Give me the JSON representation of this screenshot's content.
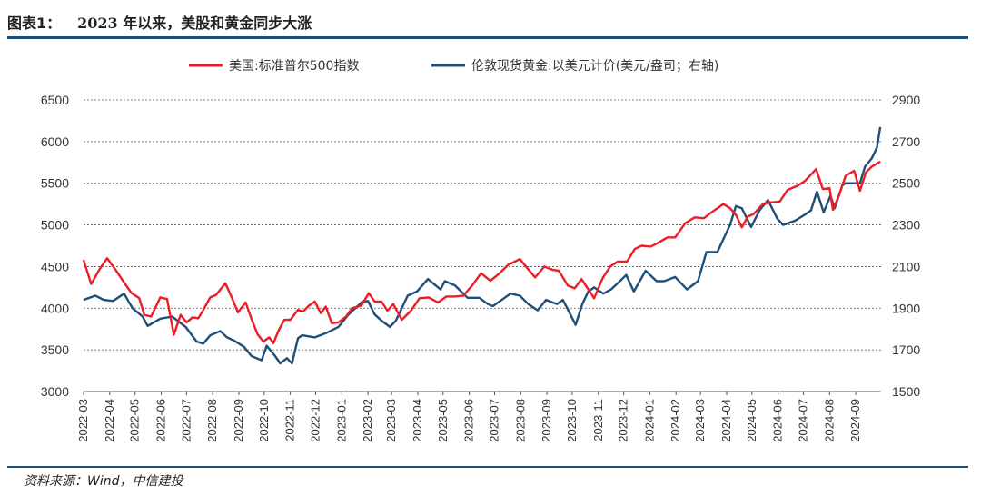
{
  "figure_label": "图表1：",
  "figure_title": "2023 年以来，美股和黄金同步大涨",
  "source": "资料来源：Wind，中信建投",
  "chart_data": {
    "type": "line",
    "legend_position": "top-center",
    "grid": "horizontal-dashed",
    "left_axis": {
      "ylim": [
        3000,
        6500
      ],
      "ticks": [
        3000,
        3500,
        4000,
        4500,
        5000,
        5500,
        6000,
        6500
      ]
    },
    "right_axis": {
      "ylim": [
        1500,
        2900
      ],
      "ticks": [
        1500,
        1700,
        1900,
        2100,
        2300,
        2500,
        2700,
        2900
      ]
    },
    "x_ticks": [
      "2022-03",
      "2022-04",
      "2022-05",
      "2022-06",
      "2022-07",
      "2022-08",
      "2022-09",
      "2022-10",
      "2022-11",
      "2022-12",
      "2023-01",
      "2023-02",
      "2023-03",
      "2023-04",
      "2023-05",
      "2023-06",
      "2023-07",
      "2023-08",
      "2023-09",
      "2023-10",
      "2023-11",
      "2023-12",
      "2024-01",
      "2024-02",
      "2024-03",
      "2024-04",
      "2024-05",
      "2024-06",
      "2024-07",
      "2024-08",
      "2024-09"
    ],
    "series": [
      {
        "name": "美国:标准普尔500指数",
        "axis": "left",
        "color": "#ee1c25",
        "x": [
          "2022-03-01",
          "2022-03-10",
          "2022-03-20",
          "2022-03-29",
          "2022-04-08",
          "2022-04-18",
          "2022-04-27",
          "2022-05-06",
          "2022-05-12",
          "2022-05-20",
          "2022-05-31",
          "2022-06-08",
          "2022-06-16",
          "2022-06-24",
          "2022-07-01",
          "2022-07-08",
          "2022-07-15",
          "2022-07-22",
          "2022-07-29",
          "2022-08-05",
          "2022-08-16",
          "2022-08-24",
          "2022-08-31",
          "2022-09-09",
          "2022-09-16",
          "2022-09-23",
          "2022-09-30",
          "2022-10-07",
          "2022-10-12",
          "2022-10-18",
          "2022-10-25",
          "2022-11-01",
          "2022-11-10",
          "2022-11-16",
          "2022-11-23",
          "2022-11-30",
          "2022-12-07",
          "2022-12-13",
          "2022-12-20",
          "2022-12-28",
          "2023-01-06",
          "2023-01-13",
          "2023-01-24",
          "2023-02-02",
          "2023-02-09",
          "2023-02-17",
          "2023-02-24",
          "2023-03-03",
          "2023-03-13",
          "2023-03-24",
          "2023-04-03",
          "2023-04-14",
          "2023-04-25",
          "2023-05-05",
          "2023-05-15",
          "2023-05-25",
          "2023-06-05",
          "2023-06-15",
          "2023-06-26",
          "2023-07-06",
          "2023-07-17",
          "2023-07-31",
          "2023-08-08",
          "2023-08-18",
          "2023-08-29",
          "2023-09-08",
          "2023-09-15",
          "2023-09-26",
          "2023-10-04",
          "2023-10-12",
          "2023-10-27",
          "2023-11-06",
          "2023-11-15",
          "2023-11-24",
          "2023-12-05",
          "2023-12-14",
          "2023-12-22",
          "2024-01-02",
          "2024-01-10",
          "2024-01-22",
          "2024-01-31",
          "2024-02-12",
          "2024-02-23",
          "2024-03-05",
          "2024-03-14",
          "2024-03-28",
          "2024-04-05",
          "2024-04-12",
          "2024-04-19",
          "2024-04-26",
          "2024-05-03",
          "2024-05-14",
          "2024-05-23",
          "2024-06-03",
          "2024-06-12",
          "2024-06-24",
          "2024-07-03",
          "2024-07-16",
          "2024-07-24",
          "2024-08-01",
          "2024-08-05",
          "2024-08-12",
          "2024-08-20",
          "2024-08-30",
          "2024-09-06",
          "2024-09-13",
          "2024-09-20",
          "2024-09-30"
        ],
        "values": [
          4580,
          4290,
          4470,
          4600,
          4460,
          4310,
          4180,
          4120,
          3920,
          3900,
          4130,
          4110,
          3680,
          3920,
          3830,
          3890,
          3880,
          4000,
          4130,
          4160,
          4300,
          4120,
          3950,
          4070,
          3870,
          3690,
          3600,
          3650,
          3580,
          3730,
          3860,
          3860,
          3980,
          3960,
          4030,
          4080,
          3940,
          4020,
          3820,
          3830,
          3900,
          4000,
          4030,
          4180,
          4080,
          4080,
          3970,
          4050,
          3860,
          3970,
          4120,
          4130,
          4070,
          4140,
          4140,
          4150,
          4280,
          4420,
          4330,
          4410,
          4520,
          4590,
          4490,
          4370,
          4500,
          4460,
          4450,
          4270,
          4240,
          4350,
          4120,
          4360,
          4500,
          4560,
          4560,
          4710,
          4750,
          4740,
          4780,
          4850,
          4850,
          5020,
          5090,
          5080,
          5150,
          5250,
          5200,
          5120,
          4970,
          5100,
          5130,
          5250,
          5270,
          5280,
          5420,
          5470,
          5530,
          5670,
          5430,
          5440,
          5180,
          5350,
          5590,
          5650,
          5410,
          5630,
          5700,
          5760
        ]
      },
      {
        "name": "伦敦现货黄金:以美元计价(美元/盎司；右轴)",
        "axis": "right",
        "color": "#1f4e79",
        "x": [
          "2022-03-01",
          "2022-03-08",
          "2022-03-15",
          "2022-03-25",
          "2022-04-05",
          "2022-04-18",
          "2022-04-28",
          "2022-05-10",
          "2022-05-16",
          "2022-05-31",
          "2022-06-14",
          "2022-06-30",
          "2022-07-13",
          "2022-07-21",
          "2022-07-29",
          "2022-08-10",
          "2022-08-18",
          "2022-08-26",
          "2022-09-07",
          "2022-09-16",
          "2022-09-28",
          "2022-10-04",
          "2022-10-14",
          "2022-10-20",
          "2022-10-28",
          "2022-11-03",
          "2022-11-10",
          "2022-11-15",
          "2022-11-30",
          "2022-12-13",
          "2022-12-28",
          "2023-01-09",
          "2023-01-25",
          "2023-02-01",
          "2023-02-09",
          "2023-02-17",
          "2023-02-27",
          "2023-03-06",
          "2023-03-13",
          "2023-03-20",
          "2023-03-31",
          "2023-04-13",
          "2023-04-28",
          "2023-05-03",
          "2023-05-15",
          "2023-05-30",
          "2023-06-13",
          "2023-06-23",
          "2023-06-29",
          "2023-07-13",
          "2023-07-20",
          "2023-07-31",
          "2023-08-10",
          "2023-08-21",
          "2023-08-31",
          "2023-09-13",
          "2023-09-20",
          "2023-10-05",
          "2023-10-13",
          "2023-10-20",
          "2023-10-27",
          "2023-11-07",
          "2023-11-16",
          "2023-11-29",
          "2023-12-04",
          "2023-12-13",
          "2023-12-27",
          "2024-01-09",
          "2024-01-18",
          "2024-01-31",
          "2024-02-14",
          "2024-02-27",
          "2024-03-08",
          "2024-03-21",
          "2024-04-05",
          "2024-04-12",
          "2024-04-19",
          "2024-04-30",
          "2024-05-10",
          "2024-05-20",
          "2024-05-31",
          "2024-06-07",
          "2024-06-14",
          "2024-06-21",
          "2024-07-03",
          "2024-07-10",
          "2024-07-17",
          "2024-07-25",
          "2024-08-02",
          "2024-08-07",
          "2024-08-16",
          "2024-08-20",
          "2024-08-30",
          "2024-09-06",
          "2024-09-12",
          "2024-09-20",
          "2024-09-26",
          "2024-09-30"
        ],
        "values": [
          1940,
          1950,
          1960,
          1940,
          1935,
          1970,
          1900,
          1860,
          1815,
          1850,
          1860,
          1810,
          1740,
          1730,
          1770,
          1790,
          1760,
          1745,
          1715,
          1670,
          1650,
          1720,
          1670,
          1635,
          1660,
          1635,
          1755,
          1770,
          1760,
          1780,
          1810,
          1870,
          1930,
          1935,
          1870,
          1840,
          1810,
          1840,
          1900,
          1960,
          1980,
          2040,
          1990,
          2030,
          2010,
          1950,
          1950,
          1920,
          1910,
          1950,
          1970,
          1960,
          1920,
          1890,
          1940,
          1920,
          1940,
          1820,
          1920,
          1980,
          2000,
          1970,
          1990,
          2040,
          2060,
          1980,
          2080,
          2030,
          2030,
          2050,
          1990,
          2030,
          2170,
          2170,
          2300,
          2390,
          2380,
          2290,
          2370,
          2420,
          2330,
          2300,
          2310,
          2320,
          2350,
          2370,
          2460,
          2360,
          2440,
          2380,
          2490,
          2500,
          2500,
          2500,
          2580,
          2620,
          2670,
          2770
        ]
      }
    ]
  }
}
